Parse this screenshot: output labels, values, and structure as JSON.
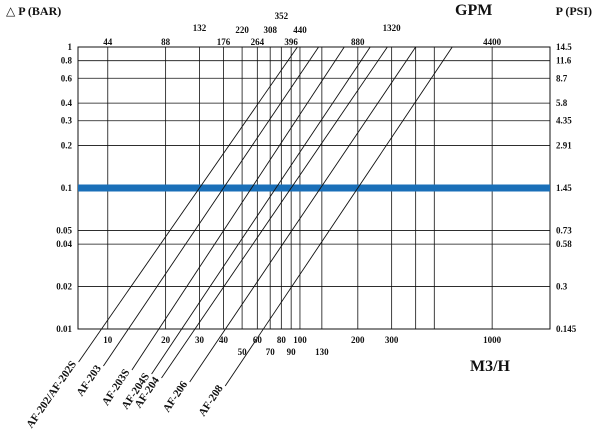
{
  "chart_data": {
    "type": "line",
    "title": "",
    "left_axis_label": "△ P (BAR)",
    "right_axis_label": "P (PSI)",
    "top_axis_label": "GPM",
    "bottom_axis_label": "M3/H",
    "x_scale": "log",
    "y_scale": "log",
    "xlim": [
      7,
      2000
    ],
    "ylim": [
      0.01,
      1
    ],
    "grid": true,
    "left_ticks": [
      {
        "value": 1,
        "label": "1"
      },
      {
        "value": 0.8,
        "label": "0.8"
      },
      {
        "value": 0.6,
        "label": "0.6"
      },
      {
        "value": 0.4,
        "label": "0.4"
      },
      {
        "value": 0.3,
        "label": "0.3"
      },
      {
        "value": 0.2,
        "label": "0.2"
      },
      {
        "value": 0.1,
        "label": "0.1"
      },
      {
        "value": 0.05,
        "label": "0.05"
      },
      {
        "value": 0.04,
        "label": "0.04"
      },
      {
        "value": 0.02,
        "label": "0.02"
      },
      {
        "value": 0.01,
        "label": "0.01"
      }
    ],
    "right_ticks": [
      {
        "value": 1,
        "label": "14.5"
      },
      {
        "value": 0.8,
        "label": "11.6"
      },
      {
        "value": 0.6,
        "label": "8.7"
      },
      {
        "value": 0.4,
        "label": "5.8"
      },
      {
        "value": 0.3,
        "label": "4.35"
      },
      {
        "value": 0.2,
        "label": "2.91"
      },
      {
        "value": 0.1,
        "label": "1.45"
      },
      {
        "value": 0.05,
        "label": "0.73"
      },
      {
        "value": 0.04,
        "label": "0.58"
      },
      {
        "value": 0.02,
        "label": "0.3"
      },
      {
        "value": 0.01,
        "label": "0.145"
      }
    ],
    "bottom_ticks": [
      {
        "value": 10,
        "label": "10",
        "row": 0
      },
      {
        "value": 20,
        "label": "20",
        "row": 0
      },
      {
        "value": 30,
        "label": "30",
        "row": 0
      },
      {
        "value": 40,
        "label": "40",
        "row": 0
      },
      {
        "value": 50,
        "label": "50",
        "row": 1
      },
      {
        "value": 60,
        "label": "60",
        "row": 0
      },
      {
        "value": 70,
        "label": "70",
        "row": 1
      },
      {
        "value": 80,
        "label": "80",
        "row": 0
      },
      {
        "value": 90,
        "label": "90",
        "row": 1
      },
      {
        "value": 100,
        "label": "100",
        "row": 0
      },
      {
        "value": 130,
        "label": "130",
        "row": 1
      },
      {
        "value": 200,
        "label": "200",
        "row": 0
      },
      {
        "value": 300,
        "label": "300",
        "row": 0
      },
      {
        "value": 1000,
        "label": "1000",
        "row": 0
      }
    ],
    "top_ticks": [
      {
        "value": 10,
        "label": "44",
        "row": 3
      },
      {
        "value": 20,
        "label": "88",
        "row": 3
      },
      {
        "value": 30,
        "label": "132",
        "row": 1
      },
      {
        "value": 40,
        "label": "176",
        "row": 3
      },
      {
        "value": 50,
        "label": "220",
        "row": 2
      },
      {
        "value": 60,
        "label": "264",
        "row": 3
      },
      {
        "value": 70,
        "label": "308",
        "row": 2
      },
      {
        "value": 80,
        "label": "352",
        "row": 0
      },
      {
        "value": 90,
        "label": "396",
        "row": 3
      },
      {
        "value": 100,
        "label": "440",
        "row": 2
      },
      {
        "value": 200,
        "label": "880",
        "row": 3
      },
      {
        "value": 300,
        "label": "1320",
        "row": 1
      },
      {
        "value": 1000,
        "label": "4400",
        "row": 3
      }
    ],
    "vertical_gridlines": [
      10,
      20,
      30,
      40,
      50,
      60,
      70,
      80,
      90,
      100,
      130,
      200,
      300,
      400,
      500,
      1000
    ],
    "highlight_pressure": 0.1,
    "highlight_color": "#1a6fb8",
    "series": [
      {
        "name": "AF-202/AF-202S",
        "flow_at_0_1_bar": 30,
        "flow_at_1_bar": 97
      },
      {
        "name": "AF-203",
        "flow_at_0_1_bar": 40,
        "flow_at_1_bar": 125
      },
      {
        "name": "AF-203S",
        "flow_at_0_1_bar": 56,
        "flow_at_1_bar": 170
      },
      {
        "name": "AF-204S",
        "flow_at_0_1_bar": 75,
        "flow_at_1_bar": 232
      },
      {
        "name": "AF-204",
        "flow_at_0_1_bar": 90,
        "flow_at_1_bar": 285
      },
      {
        "name": "AF-206",
        "flow_at_0_1_bar": 128,
        "flow_at_1_bar": 400
      },
      {
        "name": "AF-208",
        "flow_at_0_1_bar": 200,
        "flow_at_1_bar": 620
      }
    ]
  }
}
